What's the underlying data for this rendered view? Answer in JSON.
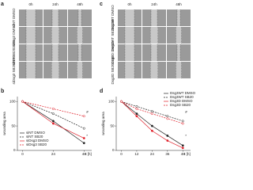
{
  "panel_a": {
    "label": "a",
    "columns": [
      "0h",
      "24h",
      "48h"
    ],
    "rows": [
      "siNT DMSO",
      "siDsg3 DMSO",
      "siNT SB202190",
      "siDsg3 SB202190"
    ]
  },
  "panel_c": {
    "label": "c",
    "columns": [
      "0h",
      "24h",
      "48h"
    ],
    "rows": [
      "Dsg3WT DMSO",
      "Dsg3WT SB202190",
      "Dsg3D DMSO",
      "Dsg3D SB202190"
    ]
  },
  "panel_b": {
    "label": "b",
    "type": "line",
    "x_label": "t [h]",
    "y_label": "wounding area",
    "x": [
      0,
      24,
      48
    ],
    "xlim": [
      -4,
      54
    ],
    "xticks": [
      0,
      24,
      48
    ],
    "ylim": [
      0,
      110
    ],
    "yticks": [
      0,
      50,
      100
    ],
    "legend": "lower left",
    "annotations": [
      "#",
      "*"
    ],
    "series": [
      {
        "name": "siNT DMSO",
        "color": "#222222",
        "dashed": false,
        "values": [
          100,
          60,
          15
        ]
      },
      {
        "name": "siNT SB20",
        "color": "#222222",
        "dashed": true,
        "values": [
          100,
          75,
          45
        ]
      },
      {
        "name": "siDsg3 DMSO",
        "color": "#e0202a",
        "dashed": false,
        "values": [
          100,
          55,
          25
        ]
      },
      {
        "name": "siDsg3 SB20",
        "color": "#e0202a",
        "dashed": true,
        "values": [
          100,
          85,
          70
        ]
      }
    ]
  },
  "panel_d": {
    "label": "d",
    "type": "line",
    "x_label": "t [h]",
    "y_label": "wounding area",
    "x": [
      0,
      12,
      24,
      36,
      48
    ],
    "xlim": [
      -4,
      54
    ],
    "xticks": [
      0,
      12,
      24,
      36,
      48
    ],
    "ylim": [
      0,
      110
    ],
    "yticks": [
      0,
      50,
      100
    ],
    "legend": "upper right",
    "annotations": [
      "#",
      "*"
    ],
    "series": [
      {
        "name": "Dsg3WT DMSO",
        "color": "#222222",
        "dashed": false,
        "values": [
          100,
          75,
          50,
          30,
          10
        ]
      },
      {
        "name": "Dsg3WT SB20",
        "color": "#222222",
        "dashed": true,
        "values": [
          100,
          90,
          80,
          70,
          60
        ]
      },
      {
        "name": "Dsg3D DMSO",
        "color": "#e0202a",
        "dashed": false,
        "values": [
          100,
          70,
          40,
          20,
          5
        ]
      },
      {
        "name": "Dsg3D SB20",
        "color": "#e0202a",
        "dashed": true,
        "values": [
          100,
          85,
          75,
          65,
          55
        ]
      }
    ]
  }
}
